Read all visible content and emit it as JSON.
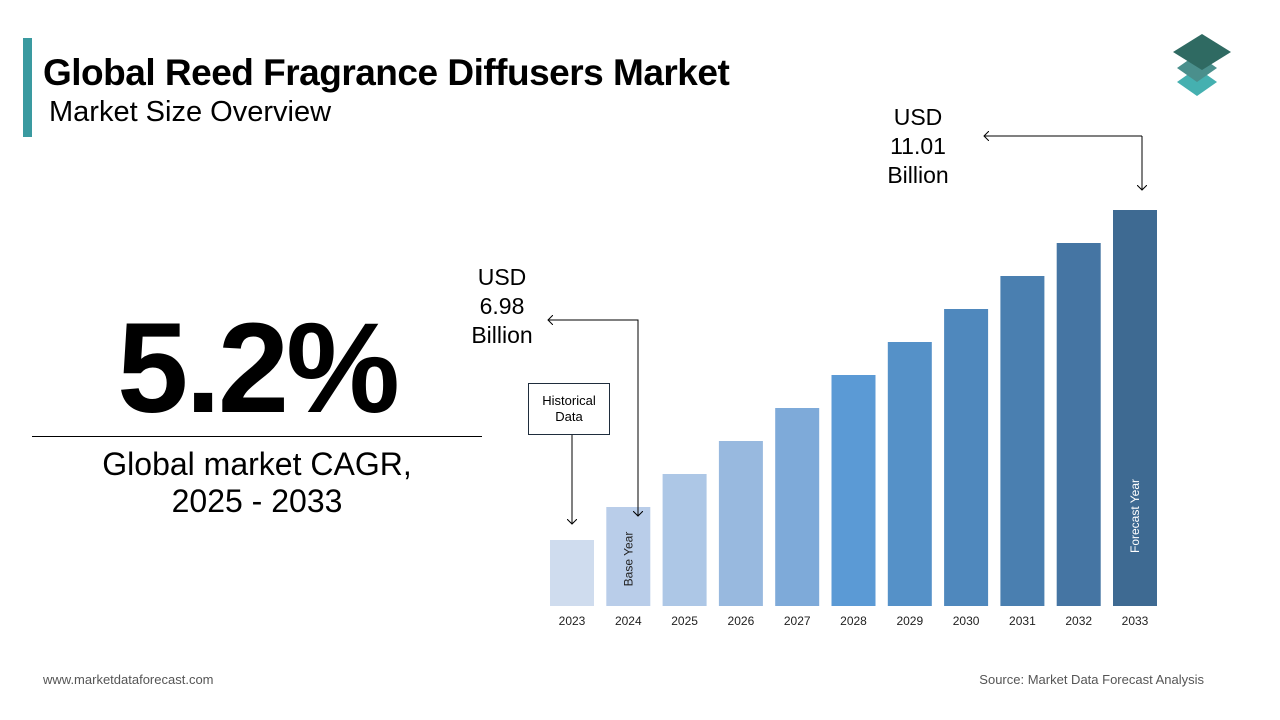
{
  "header": {
    "title": "Global Reed Fragrance Diffusers Market",
    "subtitle": "Market Size Overview",
    "logo_icon": "stacked-layers-icon",
    "accent_color": "#3a9aa0"
  },
  "kpi": {
    "value": "5.2%",
    "label_line1": "Global market CAGR,",
    "label_line2": "2025 - 2033"
  },
  "callouts": {
    "base": {
      "l1": "USD",
      "l2": "6.98",
      "l3": "Billion"
    },
    "forecast": {
      "l1": "USD",
      "l2": "11.01",
      "l3": "Billion"
    },
    "historical": {
      "l1": "Historical",
      "l2": "Data"
    }
  },
  "chart_data": {
    "type": "bar",
    "categories": [
      "2023",
      "2024",
      "2025",
      "2026",
      "2027",
      "2028",
      "2029",
      "2030",
      "2031",
      "2032",
      "2033"
    ],
    "values": [
      2,
      3,
      4,
      5,
      6,
      7,
      8,
      9,
      10,
      11,
      12
    ],
    "ylim": [
      0,
      12
    ],
    "grid": false,
    "annotations": {
      "base_year_label": "Base Year",
      "forecast_year_label": "Forecast Year",
      "2024_value": "USD 6.98 Billion",
      "2033_value": "USD 11.01 Billion"
    },
    "colors": [
      "#cfdcee",
      "#b9cde9",
      "#adc7e6",
      "#98b9df",
      "#7eaad9",
      "#5b9ad5",
      "#5591c8",
      "#4f88bd",
      "#4a7fb0",
      "#4575a3",
      "#3e6a92"
    ]
  },
  "footer": {
    "website": "www.marketdataforecast.com",
    "source": "Source: Market Data Forecast Analysis"
  }
}
